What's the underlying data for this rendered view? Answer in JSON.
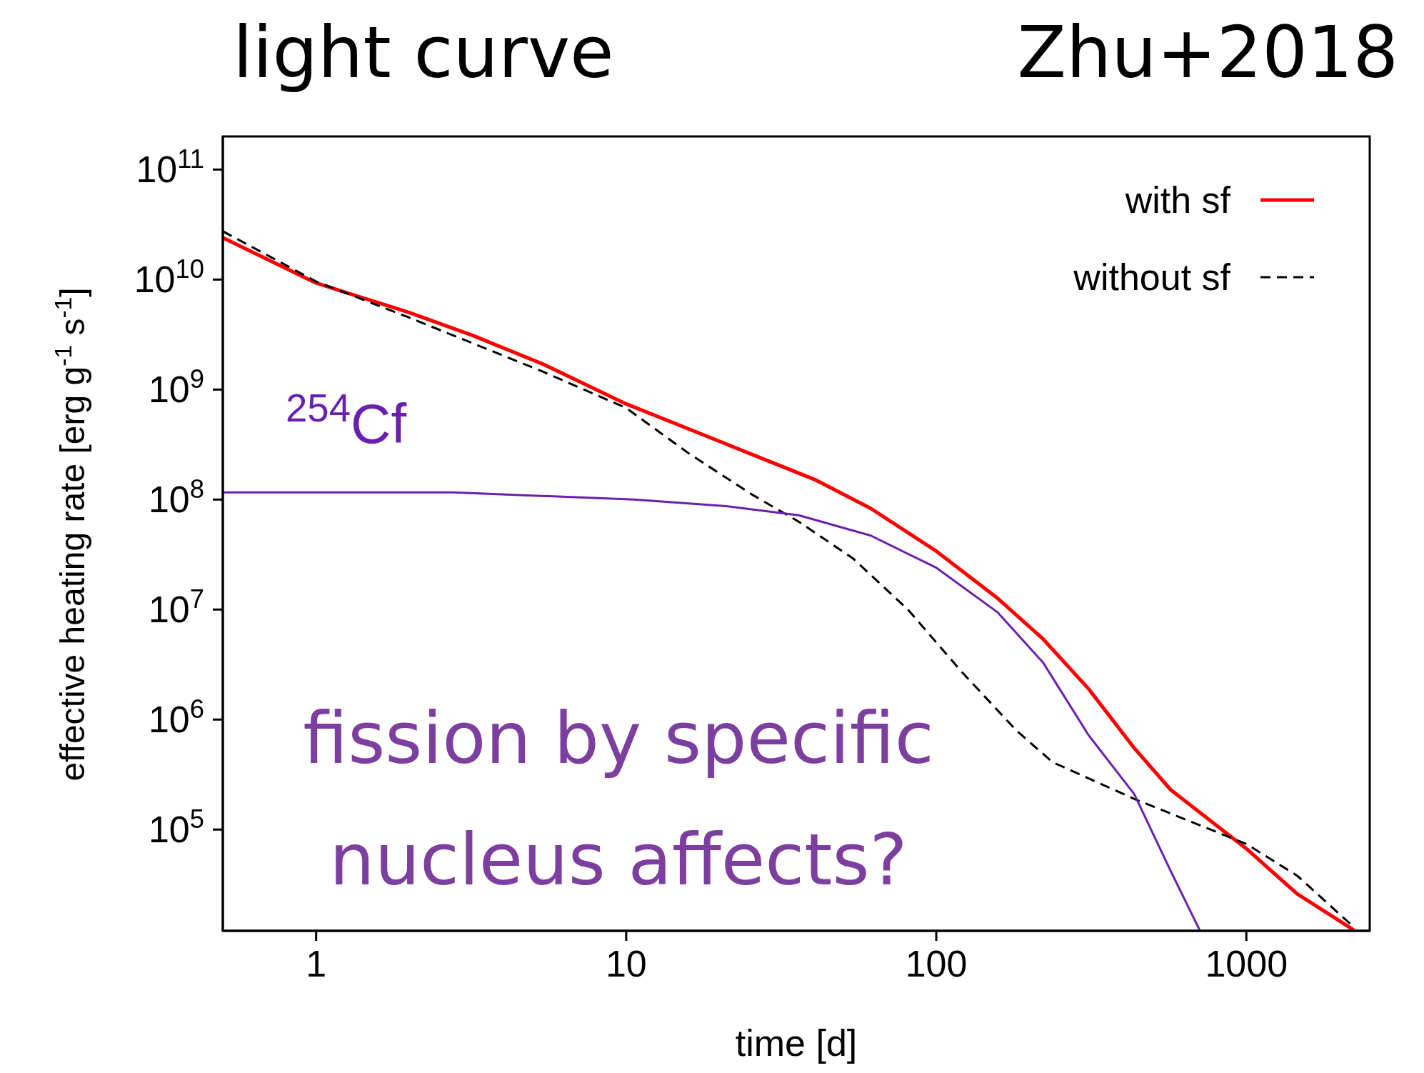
{
  "chart_data": {
    "type": "line",
    "title": "light curve",
    "subtitle": "Zhu+2018",
    "xlabel": "time [d]",
    "ylabel": "effective heating rate [erg g$^{-1}$ s$^{-1}$]",
    "annotations": [
      "$^{254}$Cf",
      "fission by specific nucleus affects?"
    ],
    "log": "xy",
    "legend": "top right",
    "xlim": [
      0.5,
      2500
    ],
    "xticks": [
      1,
      10,
      100,
      1000
    ],
    "ylim": [
      12000,
      200000000000
    ],
    "yticks": [
      {
        "value": 100000,
        "label": "10$^{5}$"
      },
      {
        "value": 1000000,
        "label": "10$^{6}$"
      },
      {
        "value": 10000000,
        "label": "10$^{7}$"
      },
      {
        "value": 100000000,
        "label": "10$^{8}$"
      },
      {
        "value": 1000000000,
        "label": "10$^{9}$"
      },
      {
        "value": 10000000000,
        "label": "10$^{10}$"
      },
      {
        "value": 100000000000,
        "label": "10$^{11}$"
      }
    ],
    "series": [
      {
        "name": "with sf",
        "color": "#ff0000",
        "line_style": "solid",
        "x": [
          0.5,
          1,
          2,
          3.2,
          5.4,
          10,
          21,
          41,
          61.5,
          100,
          158,
          221,
          310,
          435,
          570,
          1000,
          1460,
          2220
        ],
        "values": [
          24000000000,
          9300000000,
          5000000000,
          3100000000,
          1700000000,
          740000000,
          320000000,
          150000000,
          83000000,
          34000000,
          12600000,
          5400000,
          1900000,
          550000,
          230000,
          67000,
          26000,
          12200
        ]
      },
      {
        "name": "without sf",
        "color": "#000000",
        "line_style": "dashed",
        "x": [
          0.5,
          1,
          2,
          5.4,
          10,
          16,
          25.6,
          36,
          54,
          81,
          121,
          181,
          237,
          435,
          1000,
          1460,
          2220
        ],
        "values": [
          27500000000,
          9600000000,
          4500000000,
          1450000000,
          680000000,
          260000000,
          110000000,
          63000000,
          29000000,
          10000000,
          2700000,
          800000,
          410000,
          190000,
          74000,
          38000,
          13000
        ]
      },
      {
        "color": "#6a1fb0",
        "line_style": "solid",
        "x": [
          0.5,
          2.77,
          10.6,
          21,
          36,
          61.5,
          100,
          158,
          221,
          310,
          435,
          570,
          707
        ],
        "values": [
          116000000,
          116000000,
          100000000,
          87000000,
          72000000,
          47000000,
          24000000,
          9400000,
          3300000,
          720000,
          210000,
          42000,
          12200
        ]
      }
    ]
  }
}
